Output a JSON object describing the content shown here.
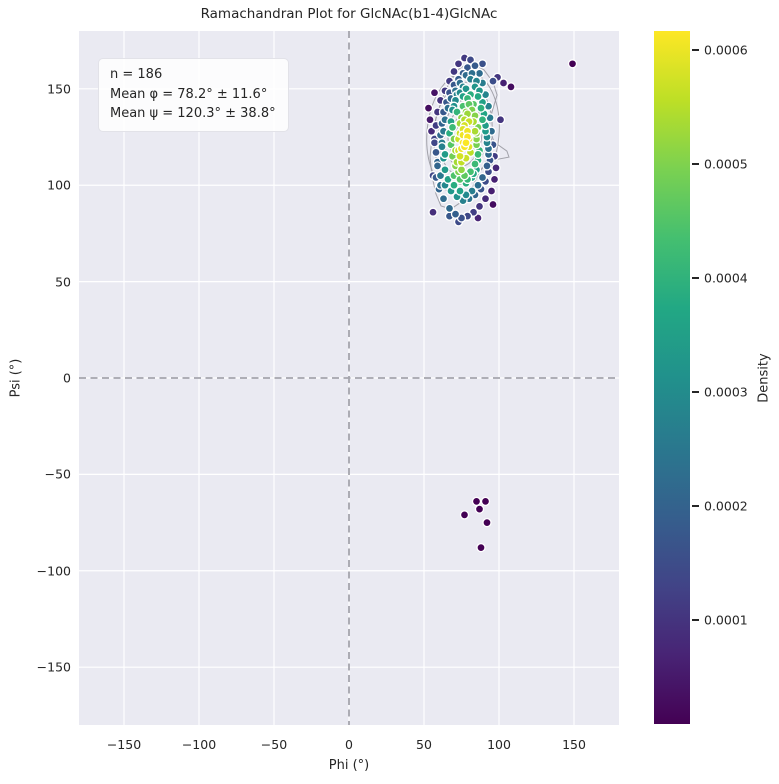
{
  "title": "Ramachandran Plot for GlcNAc(b1-4)GlcNAc",
  "annotation": {
    "line1": "n = 186",
    "line2": "Mean φ = 78.2° ± 11.6°",
    "line3": "Mean ψ = 120.3° ± 38.8°"
  },
  "axes": {
    "xlabel": "Phi (°)",
    "ylabel": "Psi (°)",
    "xlim": [
      -180,
      180
    ],
    "ylim": [
      -180,
      180
    ],
    "xticks": [
      -150,
      -100,
      -50,
      0,
      50,
      100,
      150
    ],
    "yticks": [
      150,
      100,
      50,
      0,
      -50,
      -100,
      -150
    ],
    "grid": true,
    "guide_lines": {
      "x": 0,
      "y": 0
    }
  },
  "colorbar": {
    "label": "Density",
    "ticks": [
      0.0001,
      0.0002,
      0.0003,
      0.0004,
      0.0005,
      0.0006
    ],
    "tick_labels": [
      "0.0001",
      "0.0002",
      "0.0003",
      "0.0004",
      "0.0005",
      "0.0006"
    ],
    "vmin": 8.5e-06,
    "vmax": 0.000617
  },
  "colors": {
    "figure_bg": "#ffffff",
    "axes_bg": "#eaeaf2",
    "grid": "#ffffff",
    "guide_dash": "#a5a5ad",
    "contour": "#9a9aa2",
    "point_edge": "#ffffff",
    "text": "#262626",
    "viridis_stops": [
      "#440154",
      "#482475",
      "#414487",
      "#355f8d",
      "#2a788e",
      "#21918c",
      "#22a884",
      "#44bf70",
      "#7ad151",
      "#bddf26",
      "#fde725"
    ]
  },
  "chart_data": {
    "type": "scatter",
    "title": "Ramachandran Plot for GlcNAc(b1-4)GlcNAc",
    "xlabel": "Phi (°)",
    "ylabel": "Psi (°)",
    "xlim": [
      -180,
      180
    ],
    "ylim": [
      -180,
      180
    ],
    "n": 186,
    "mean_phi": 78.2,
    "std_phi": 11.6,
    "mean_psi": 120.3,
    "std_psi": 38.8,
    "legend_position": "right-colorbar",
    "color_by": "kernel density estimate (viridis)",
    "density_model": {
      "center_phi": 77.5,
      "center_psi": 123,
      "sigma_phi": 12.5,
      "sigma_psi": 25,
      "rho": 0.35,
      "peak": 0.000617
    },
    "points": [
      [
        75,
        112
      ],
      [
        78,
        114
      ],
      [
        73,
        118
      ],
      [
        80,
        120
      ],
      [
        76,
        122
      ],
      [
        79,
        125
      ],
      [
        74,
        127
      ],
      [
        77,
        131
      ],
      [
        80,
        133
      ],
      [
        75,
        135
      ],
      [
        78,
        138
      ],
      [
        76,
        141
      ],
      [
        73,
        124
      ],
      [
        81,
        117
      ],
      [
        77,
        120
      ],
      [
        74,
        132
      ],
      [
        79,
        128
      ],
      [
        76,
        126
      ],
      [
        78,
        122
      ],
      [
        75,
        119
      ],
      [
        80,
        124
      ],
      [
        77,
        134
      ],
      [
        74,
        115
      ],
      [
        79,
        137
      ],
      [
        76,
        129
      ],
      [
        70,
        105
      ],
      [
        74,
        103
      ],
      [
        78,
        101
      ],
      [
        82,
        104
      ],
      [
        85,
        108
      ],
      [
        86,
        113
      ],
      [
        87,
        118
      ],
      [
        85,
        124
      ],
      [
        86,
        130
      ],
      [
        84,
        136
      ],
      [
        83,
        142
      ],
      [
        81,
        147
      ],
      [
        78,
        150
      ],
      [
        74,
        148
      ],
      [
        71,
        144
      ],
      [
        69,
        139
      ],
      [
        68,
        133
      ],
      [
        67,
        127
      ],
      [
        68,
        121
      ],
      [
        69,
        115
      ],
      [
        71,
        110
      ],
      [
        73,
        107
      ],
      [
        77,
        105
      ],
      [
        81,
        107
      ],
      [
        84,
        111
      ],
      [
        85,
        121
      ],
      [
        84,
        128
      ],
      [
        82,
        139
      ],
      [
        79,
        145
      ],
      [
        76,
        151
      ],
      [
        72,
        147
      ],
      [
        70,
        141
      ],
      [
        69,
        130
      ],
      [
        70,
        124
      ],
      [
        71,
        118
      ],
      [
        72,
        112
      ],
      [
        75,
        108
      ],
      [
        79,
        103
      ],
      [
        83,
        106
      ],
      [
        86,
        116
      ],
      [
        85,
        127
      ],
      [
        83,
        133
      ],
      [
        80,
        142
      ],
      [
        76,
        146
      ],
      [
        72,
        138
      ],
      [
        64,
        100
      ],
      [
        68,
        97
      ],
      [
        72,
        94
      ],
      [
        76,
        92
      ],
      [
        80,
        93
      ],
      [
        84,
        95
      ],
      [
        88,
        98
      ],
      [
        91,
        102
      ],
      [
        93,
        107
      ],
      [
        94,
        113
      ],
      [
        93,
        119
      ],
      [
        92,
        125
      ],
      [
        91,
        131
      ],
      [
        90,
        137
      ],
      [
        89,
        143
      ],
      [
        87,
        149
      ],
      [
        85,
        154
      ],
      [
        82,
        158
      ],
      [
        79,
        161
      ],
      [
        76,
        158
      ],
      [
        73,
        155
      ],
      [
        70,
        152
      ],
      [
        67,
        148
      ],
      [
        65,
        143
      ],
      [
        63,
        138
      ],
      [
        62,
        132
      ],
      [
        61,
        126
      ],
      [
        62,
        120
      ],
      [
        63,
        114
      ],
      [
        64,
        108
      ],
      [
        66,
        103
      ],
      [
        70,
        100
      ],
      [
        74,
        97
      ],
      [
        78,
        95
      ],
      [
        82,
        97
      ],
      [
        86,
        100
      ],
      [
        89,
        104
      ],
      [
        92,
        110
      ],
      [
        93,
        116
      ],
      [
        92,
        122
      ],
      [
        91,
        128
      ],
      [
        89,
        134
      ],
      [
        88,
        140
      ],
      [
        86,
        146
      ],
      [
        84,
        151
      ],
      [
        81,
        155
      ],
      [
        78,
        157
      ],
      [
        74,
        153
      ],
      [
        71,
        149
      ],
      [
        68,
        145
      ],
      [
        66,
        140
      ],
      [
        64,
        134
      ],
      [
        63,
        128
      ],
      [
        62,
        122
      ],
      [
        64,
        116
      ],
      [
        58,
        104
      ],
      [
        60,
        98
      ],
      [
        63,
        93
      ],
      [
        67,
        88
      ],
      [
        71,
        85
      ],
      [
        75,
        83
      ],
      [
        79,
        84
      ],
      [
        83,
        86
      ],
      [
        87,
        89
      ],
      [
        91,
        93
      ],
      [
        95,
        97
      ],
      [
        97,
        103
      ],
      [
        98,
        109
      ],
      [
        97,
        115
      ],
      [
        96,
        121
      ],
      [
        95,
        128
      ],
      [
        94,
        135
      ],
      [
        93,
        141
      ],
      [
        91,
        147
      ],
      [
        89,
        153
      ],
      [
        87,
        158
      ],
      [
        84,
        162
      ],
      [
        81,
        165
      ],
      [
        77,
        166
      ],
      [
        73,
        163
      ],
      [
        70,
        159
      ],
      [
        67,
        154
      ],
      [
        64,
        149
      ],
      [
        61,
        144
      ],
      [
        59,
        138
      ],
      [
        58,
        131
      ],
      [
        57,
        124
      ],
      [
        58,
        117
      ],
      [
        59,
        110
      ],
      [
        61,
        105
      ],
      [
        57,
        148
      ],
      [
        54,
        134
      ],
      [
        55,
        128
      ],
      [
        57,
        122
      ],
      [
        59,
        112
      ],
      [
        56,
        86
      ],
      [
        61,
        100
      ],
      [
        67,
        84
      ],
      [
        73,
        81
      ],
      [
        99,
        156
      ],
      [
        103,
        153
      ],
      [
        108,
        151
      ],
      [
        101,
        134
      ],
      [
        96,
        90
      ],
      [
        86,
        83
      ],
      [
        56,
        105
      ],
      [
        53,
        140
      ],
      [
        96,
        154
      ],
      [
        89,
        163
      ],
      [
        85,
        -64
      ],
      [
        91,
        -64
      ],
      [
        77,
        -71
      ],
      [
        87,
        -68
      ],
      [
        92,
        -75
      ],
      [
        88,
        -88
      ],
      [
        149,
        163
      ]
    ],
    "contours": {
      "stroke": "#9a9aa2",
      "center": [
        76,
        127
      ],
      "rotation_deg": 5,
      "ellipse_levels_radii": [
        [
          24,
          32
        ],
        [
          19.3,
          26.5
        ],
        [
          16,
          21.8
        ],
        [
          12.7,
          17.1
        ],
        [
          10,
          13
        ],
        [
          7.3,
          9.3
        ],
        [
          4.7,
          5.7
        ],
        [
          2.7,
          3.1
        ]
      ],
      "outer_polygon": [
        [
          80.7,
          163.9
        ],
        [
          90,
          159.8
        ],
        [
          96,
          153.5
        ],
        [
          98.7,
          146.8
        ],
        [
          95.3,
          138
        ],
        [
          93.3,
          129.7
        ],
        [
          96.7,
          122.4
        ],
        [
          105.3,
          117.7
        ],
        [
          106.7,
          114.6
        ],
        [
          93.3,
          112.6
        ],
        [
          86.7,
          106.8
        ],
        [
          82.7,
          99.6
        ],
        [
          76.7,
          92.3
        ],
        [
          68,
          87.7
        ],
        [
          61.3,
          89.2
        ],
        [
          58,
          95.4
        ],
        [
          55.3,
          104.8
        ],
        [
          54,
          114.6
        ],
        [
          55.3,
          124.5
        ],
        [
          58,
          134.9
        ],
        [
          62,
          144.7
        ],
        [
          66.7,
          153
        ],
        [
          73.3,
          160.3
        ]
      ]
    }
  }
}
